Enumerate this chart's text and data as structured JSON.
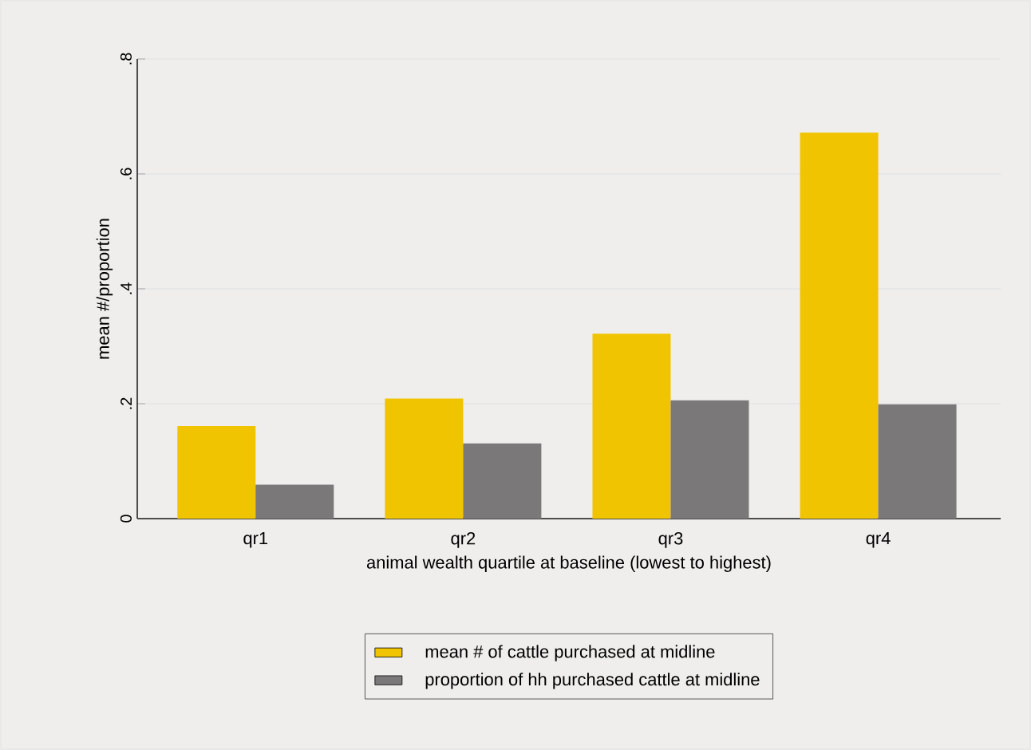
{
  "chart_data": {
    "type": "bar",
    "xlabel": "animal wealth quartile at baseline (lowest to highest)",
    "ylabel": "mean #/proportion",
    "categories": [
      "qr1",
      "qr2",
      "qr3",
      "qr4"
    ],
    "series": [
      {
        "name": "mean # of cattle purchased at midline",
        "color": "#f0c400",
        "values": [
          0.161,
          0.209,
          0.322,
          0.672
        ]
      },
      {
        "name": "proportion of hh purchased cattle at midline",
        "color": "#7a7878",
        "values": [
          0.059,
          0.131,
          0.206,
          0.199
        ]
      }
    ],
    "ylim": [
      0,
      0.8
    ],
    "yticks": [
      {
        "value": 0,
        "label": "0"
      },
      {
        "value": 0.2,
        "label": ".2"
      },
      {
        "value": 0.4,
        "label": ".4"
      },
      {
        "value": 0.6,
        "label": ".6"
      },
      {
        "value": 0.8,
        "label": ".8"
      }
    ],
    "grid": "y",
    "legend": "bottom"
  }
}
